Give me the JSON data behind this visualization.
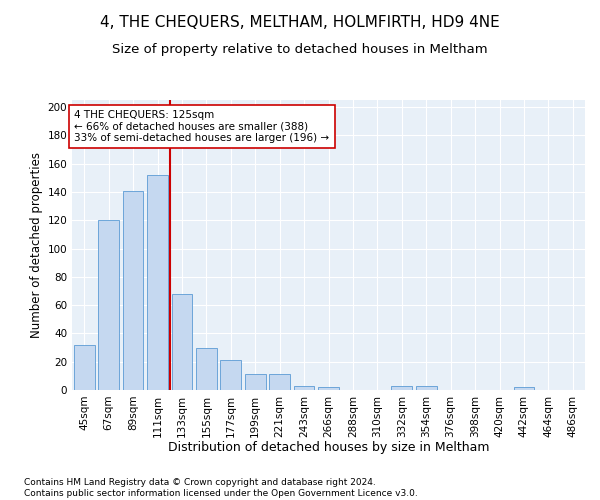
{
  "title": "4, THE CHEQUERS, MELTHAM, HOLMFIRTH, HD9 4NE",
  "subtitle": "Size of property relative to detached houses in Meltham",
  "xlabel": "Distribution of detached houses by size in Meltham",
  "ylabel": "Number of detached properties",
  "categories": [
    "45sqm",
    "67sqm",
    "89sqm",
    "111sqm",
    "133sqm",
    "155sqm",
    "177sqm",
    "199sqm",
    "221sqm",
    "243sqm",
    "266sqm",
    "288sqm",
    "310sqm",
    "332sqm",
    "354sqm",
    "376sqm",
    "398sqm",
    "420sqm",
    "442sqm",
    "464sqm",
    "486sqm"
  ],
  "values": [
    32,
    120,
    141,
    152,
    68,
    30,
    21,
    11,
    11,
    3,
    2,
    0,
    0,
    3,
    3,
    0,
    0,
    0,
    2,
    0,
    0
  ],
  "bar_color": "#c5d8f0",
  "bar_edgecolor": "#5b9bd5",
  "vline_x_idx": 4,
  "vline_color": "#cc0000",
  "annotation_text": "4 THE CHEQUERS: 125sqm\n← 66% of detached houses are smaller (388)\n33% of semi-detached houses are larger (196) →",
  "annotation_box_color": "#ffffff",
  "annotation_box_edgecolor": "#cc0000",
  "ylim": [
    0,
    205
  ],
  "yticks": [
    0,
    20,
    40,
    60,
    80,
    100,
    120,
    140,
    160,
    180,
    200
  ],
  "bg_color": "#e8f0f8",
  "footer": "Contains HM Land Registry data © Crown copyright and database right 2024.\nContains public sector information licensed under the Open Government Licence v3.0.",
  "title_fontsize": 11,
  "subtitle_fontsize": 9.5,
  "xlabel_fontsize": 9,
  "ylabel_fontsize": 8.5,
  "tick_fontsize": 7.5,
  "footer_fontsize": 6.5
}
